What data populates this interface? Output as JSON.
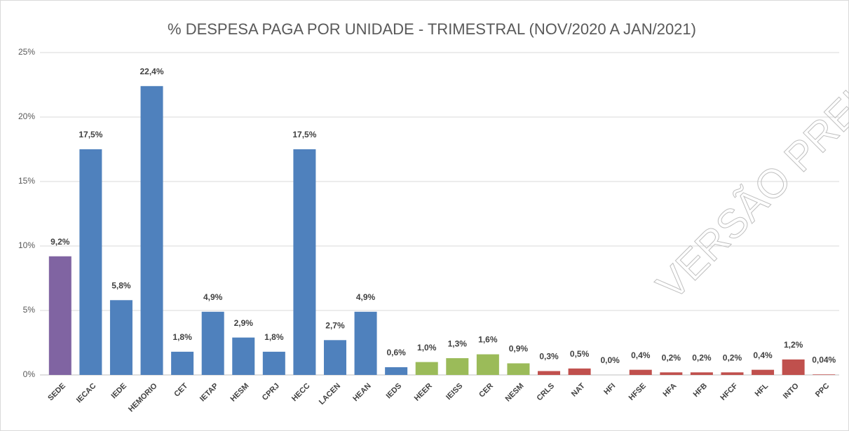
{
  "chart_data": {
    "type": "bar",
    "title": "% DESPESA PAGA POR UNIDADE - TRIMESTRAL (NOV/2020 A JAN/2021)",
    "watermark": "VERSÃO PRELIM",
    "categories": [
      "SEDE",
      "IECAC",
      "IEDE",
      "HEMORIO",
      "CET",
      "IETAP",
      "HESM",
      "CPRJ",
      "HECC",
      "LACEN",
      "HEAN",
      "IEDS",
      "HEER",
      "IEISS",
      "CER",
      "NESM",
      "CRLS",
      "NAT",
      "HFI",
      "HFSE",
      "HFA",
      "HFB",
      "HFCF",
      "HFL",
      "INTO",
      "PPC"
    ],
    "values": [
      9.2,
      17.5,
      5.8,
      22.4,
      1.8,
      4.9,
      2.9,
      1.8,
      17.5,
      2.7,
      4.9,
      0.6,
      1.0,
      1.3,
      1.6,
      0.9,
      0.3,
      0.5,
      0.0,
      0.4,
      0.2,
      0.2,
      0.2,
      0.4,
      1.2,
      0.04
    ],
    "value_labels": [
      "9,2%",
      "17,5%",
      "5,8%",
      "22,4%",
      "1,8%",
      "4,9%",
      "2,9%",
      "1,8%",
      "17,5%",
      "2,7%",
      "4,9%",
      "0,6%",
      "1,0%",
      "1,3%",
      "1,6%",
      "0,9%",
      "0,3%",
      "0,5%",
      "0,0%",
      "0,4%",
      "0,2%",
      "0,2%",
      "0,2%",
      "0,4%",
      "1,2%",
      "0,04%"
    ],
    "colors": [
      "#8064a2",
      "#4f81bd",
      "#4f81bd",
      "#4f81bd",
      "#4f81bd",
      "#4f81bd",
      "#4f81bd",
      "#4f81bd",
      "#4f81bd",
      "#4f81bd",
      "#4f81bd",
      "#4f81bd",
      "#9bbb59",
      "#9bbb59",
      "#9bbb59",
      "#9bbb59",
      "#c0504d",
      "#c0504d",
      "#c0504d",
      "#c0504d",
      "#c0504d",
      "#c0504d",
      "#c0504d",
      "#c0504d",
      "#c0504d",
      "#c0504d"
    ],
    "ylim": [
      0,
      25
    ],
    "yticks": [
      {
        "value": 0,
        "label": "0%"
      },
      {
        "value": 5,
        "label": "5%"
      },
      {
        "value": 10,
        "label": "10%"
      },
      {
        "value": 15,
        "label": "15%"
      },
      {
        "value": 20,
        "label": "20%"
      },
      {
        "value": 25,
        "label": "25%"
      }
    ],
    "grid": true
  }
}
